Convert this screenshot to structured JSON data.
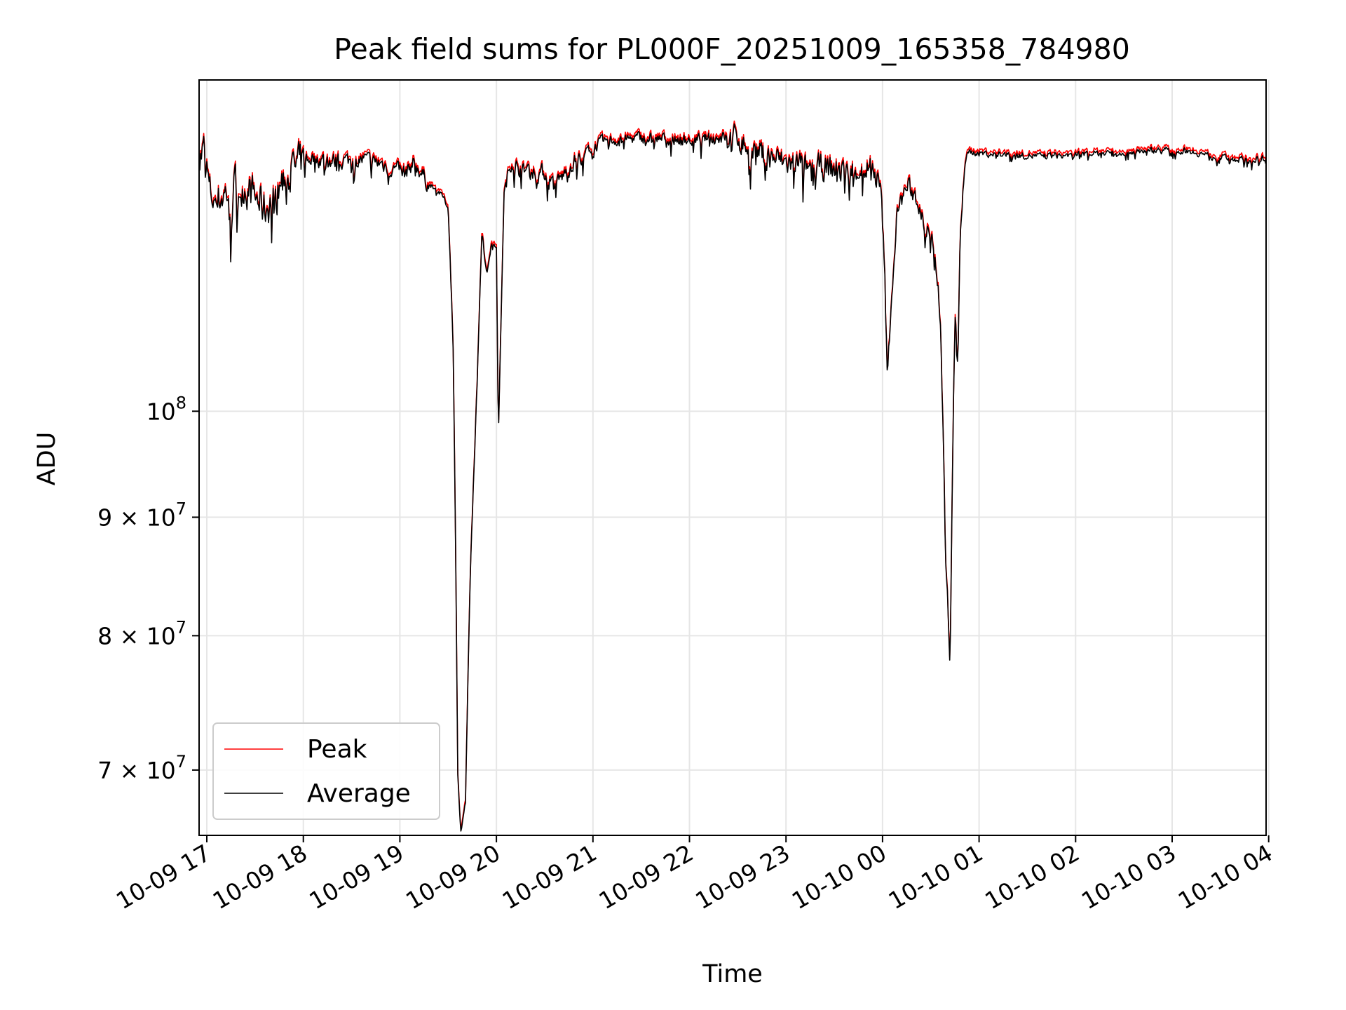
{
  "chart_data": {
    "type": "line",
    "title": "Peak field sums for PL000F_20251009_165358_784980",
    "xlabel": "Time",
    "ylabel": "ADU",
    "yscale": "log",
    "ylim": [
      65600000,
      139000000
    ],
    "grid": true,
    "legend_position": "lower-left",
    "x_ticks": [
      {
        "hour": 0,
        "label": "10-09 17"
      },
      {
        "hour": 1,
        "label": "10-09 18"
      },
      {
        "hour": 2,
        "label": "10-09 19"
      },
      {
        "hour": 3,
        "label": "10-09 20"
      },
      {
        "hour": 4,
        "label": "10-09 21"
      },
      {
        "hour": 5,
        "label": "10-09 22"
      },
      {
        "hour": 6,
        "label": "10-09 23"
      },
      {
        "hour": 7,
        "label": "10-10 00"
      },
      {
        "hour": 8,
        "label": "10-10 01"
      },
      {
        "hour": 9,
        "label": "10-10 02"
      },
      {
        "hour": 10,
        "label": "10-10 03"
      },
      {
        "hour": 11,
        "label": "10-10 04"
      }
    ],
    "y_ticks": [
      {
        "value": 100000000,
        "mantissa": "",
        "base": "10",
        "exp": "8"
      },
      {
        "value": 90000000,
        "mantissa": "9 × ",
        "base": "10",
        "exp": "7"
      },
      {
        "value": 80000000,
        "mantissa": "8 × ",
        "base": "10",
        "exp": "7"
      },
      {
        "value": 70000000,
        "mantissa": "7 × ",
        "base": "10",
        "exp": "7"
      }
    ],
    "x_unit": "hours since 2025-10-09 17:00",
    "average_keypoints": [
      [
        -0.08,
        129500000
      ],
      [
        -0.02,
        130500000
      ],
      [
        0.03,
        125000000
      ],
      [
        0.1,
        124000000
      ],
      [
        0.2,
        125000000
      ],
      [
        0.35,
        126500000
      ],
      [
        0.5,
        124500000
      ],
      [
        0.6,
        123000000
      ],
      [
        0.7,
        124500000
      ],
      [
        0.8,
        127000000
      ],
      [
        0.95,
        128500000
      ],
      [
        1.1,
        129000000
      ],
      [
        1.3,
        128500000
      ],
      [
        1.6,
        128800000
      ],
      [
        1.8,
        128300000
      ],
      [
        1.95,
        127500000
      ],
      [
        2.05,
        127000000
      ],
      [
        2.15,
        128500000
      ],
      [
        2.3,
        125500000
      ],
      [
        2.4,
        124500000
      ],
      [
        2.45,
        123800000
      ],
      [
        2.5,
        122500000
      ],
      [
        2.55,
        108000000
      ],
      [
        2.6,
        70000000
      ],
      [
        2.63,
        65800000
      ],
      [
        2.68,
        67800000
      ],
      [
        2.73,
        85000000
      ],
      [
        2.8,
        103000000
      ],
      [
        2.85,
        120000000
      ],
      [
        2.9,
        114500000
      ],
      [
        2.95,
        118500000
      ],
      [
        3.0,
        118000000
      ],
      [
        3.02,
        97500000
      ],
      [
        3.05,
        110000000
      ],
      [
        3.08,
        124500000
      ],
      [
        3.15,
        128500000
      ],
      [
        3.3,
        127500000
      ],
      [
        3.5,
        127000000
      ],
      [
        3.6,
        125500000
      ],
      [
        3.7,
        126800000
      ],
      [
        3.8,
        128500000
      ],
      [
        3.9,
        129500000
      ],
      [
        4.1,
        131000000
      ],
      [
        4.5,
        131500000
      ],
      [
        5.0,
        131200000
      ],
      [
        5.3,
        131500000
      ],
      [
        5.5,
        131800000
      ],
      [
        5.6,
        130500000
      ],
      [
        5.8,
        129500000
      ],
      [
        6.0,
        128500000
      ],
      [
        6.3,
        128000000
      ],
      [
        6.6,
        127500000
      ],
      [
        6.9,
        128000000
      ],
      [
        6.98,
        125000000
      ],
      [
        7.02,
        116000000
      ],
      [
        7.05,
        103000000
      ],
      [
        7.08,
        110000000
      ],
      [
        7.15,
        122000000
      ],
      [
        7.25,
        125500000
      ],
      [
        7.35,
        124000000
      ],
      [
        7.45,
        120500000
      ],
      [
        7.55,
        118000000
      ],
      [
        7.6,
        110000000
      ],
      [
        7.65,
        88000000
      ],
      [
        7.7,
        77500000
      ],
      [
        7.75,
        110000000
      ],
      [
        7.78,
        104000000
      ],
      [
        7.8,
        118000000
      ],
      [
        7.85,
        128500000
      ],
      [
        7.9,
        129500000
      ],
      [
        8.2,
        129200000
      ],
      [
        8.6,
        129000000
      ],
      [
        9.0,
        129200000
      ],
      [
        9.4,
        129500000
      ],
      [
        9.8,
        129800000
      ],
      [
        10.2,
        129600000
      ],
      [
        10.4,
        129000000
      ],
      [
        10.6,
        128700000
      ],
      [
        10.85,
        128500000
      ],
      [
        11.03,
        128800000
      ]
    ],
    "series": [
      {
        "name": "Peak",
        "color": "#ff0000",
        "offset_factor": 1.003
      },
      {
        "name": "Average",
        "color": "#000000",
        "offset_factor": 1.0
      }
    ]
  }
}
